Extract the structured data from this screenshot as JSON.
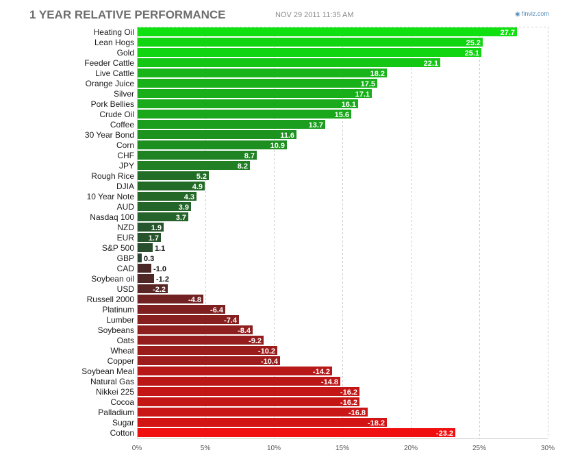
{
  "header": {
    "title": "1 YEAR RELATIVE PERFORMANCE",
    "timestamp": "NOV 29 2011 11:35 AM",
    "brand": "finviz.com",
    "brand_icon": "finviz-logo-icon"
  },
  "colors": {
    "positive_max": "#10e010",
    "positive_min": "#2a4030",
    "negative_min": "#3a2a2a",
    "negative_max": "#f01010",
    "gridline": "#cccccc"
  },
  "chart_data": {
    "type": "bar",
    "orientation": "horizontal",
    "title": "1 YEAR RELATIVE PERFORMANCE",
    "xlim": [
      0,
      30
    ],
    "xticks": [
      0,
      5,
      10,
      15,
      20,
      25,
      30
    ],
    "xtick_labels": [
      "0%",
      "5%",
      "10%",
      "15%",
      "20%",
      "25%",
      "30%"
    ],
    "grid": true,
    "categories": [
      "Heating Oil",
      "Lean Hogs",
      "Gold",
      "Feeder Cattle",
      "Live Cattle",
      "Orange Juice",
      "Silver",
      "Pork Bellies",
      "Crude Oil",
      "Coffee",
      "30 Year Bond",
      "Corn",
      "CHF",
      "JPY",
      "Rough Rice",
      "DJIA",
      "10 Year Note",
      "AUD",
      "Nasdaq 100",
      "NZD",
      "EUR",
      "S&P 500",
      "GBP",
      "CAD",
      "Soybean oil",
      "USD",
      "Russell 2000",
      "Platinum",
      "Lumber",
      "Soybeans",
      "Oats",
      "Wheat",
      "Copper",
      "Soybean Meal",
      "Natural Gas",
      "Nikkei 225",
      "Cocoa",
      "Palladium",
      "Sugar",
      "Cotton"
    ],
    "values": [
      27.7,
      25.2,
      25.1,
      22.1,
      18.2,
      17.5,
      17.1,
      16.1,
      15.6,
      13.7,
      11.6,
      10.9,
      8.7,
      8.2,
      5.2,
      4.9,
      4.3,
      3.9,
      3.7,
      1.9,
      1.7,
      1.1,
      0.3,
      -1.0,
      -1.2,
      -2.2,
      -4.8,
      -6.4,
      -7.4,
      -8.4,
      -9.2,
      -10.2,
      -10.4,
      -14.2,
      -14.8,
      -16.2,
      -16.2,
      -16.8,
      -18.2,
      -23.2
    ],
    "value_labels": [
      "27.7",
      "25.2",
      "25.1",
      "22.1",
      "18.2",
      "17.5",
      "17.1",
      "16.1",
      "15.6",
      "13.7",
      "11.6",
      "10.9",
      "8.7",
      "8.2",
      "5.2",
      "4.9",
      "4.3",
      "3.9",
      "3.7",
      "1.9",
      "1.7",
      "1.1",
      "0.3",
      "-1.0",
      "-1.2",
      "-2.2",
      "-4.8",
      "-6.4",
      "-7.4",
      "-8.4",
      "-9.2",
      "-10.2",
      "-10.4",
      "-14.2",
      "-14.8",
      "-16.2",
      "-16.2",
      "-16.8",
      "-18.2",
      "-23.2"
    ],
    "bar_length": "absolute value"
  }
}
